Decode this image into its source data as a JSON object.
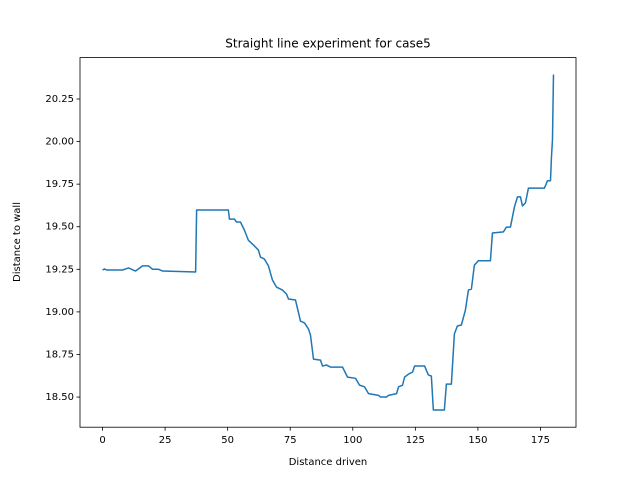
{
  "chart_data": {
    "type": "line",
    "title": "Straight line experiment for case5",
    "x_label": "Distance driven",
    "y_label": "Distance to wall",
    "color": "#1f77b4",
    "x": [
      0,
      0.8,
      1.6,
      8,
      10.4,
      13.2,
      16,
      18.4,
      20,
      22.4,
      24,
      37.2,
      37.6,
      50.3,
      50.7,
      52.7,
      53.5,
      55.1,
      56.7,
      58.3,
      60.7,
      62.3,
      63.1,
      64.7,
      66.3,
      67.9,
      69.5,
      71.9,
      73.5,
      74.3,
      77.1,
      79.1,
      80.7,
      82.3,
      83.1,
      84.3,
      87.1,
      87.9,
      89.5,
      91.1,
      95.9,
      97.9,
      101.1,
      102.7,
      104.7,
      106.3,
      110.3,
      111.1,
      113.5,
      114.3,
      117.5,
      118.3,
      119.9,
      120.7,
      122.3,
      123.9,
      124.7,
      128.7,
      130.2,
      131.4,
      132.2,
      136.6,
      137.4,
      139.4,
      140.6,
      141.8,
      143.4,
      145.0,
      146.2,
      147.4,
      148.6,
      150.2,
      155.0,
      155.8,
      160.2,
      161.4,
      163,
      164.6,
      165.8,
      167,
      167.8,
      169.0,
      170.2,
      176.6,
      177.8,
      179.0,
      179.4,
      179.8,
      180.2,
      180.2
    ],
    "values": [
      19.246,
      19.252,
      19.246,
      19.246,
      19.258,
      19.24,
      19.27,
      19.27,
      19.25,
      19.25,
      19.24,
      19.234,
      19.598,
      19.598,
      19.545,
      19.545,
      19.528,
      19.528,
      19.48,
      19.42,
      19.387,
      19.363,
      19.322,
      19.31,
      19.27,
      19.187,
      19.146,
      19.128,
      19.105,
      19.076,
      19.07,
      18.946,
      18.935,
      18.9,
      18.864,
      18.723,
      18.717,
      18.682,
      18.688,
      18.676,
      18.676,
      18.617,
      18.61,
      18.57,
      18.56,
      18.52,
      18.51,
      18.5,
      18.5,
      18.51,
      18.52,
      18.56,
      18.57,
      18.617,
      18.635,
      18.647,
      18.682,
      18.682,
      18.63,
      18.623,
      18.424,
      18.424,
      18.576,
      18.576,
      18.87,
      18.917,
      18.923,
      19.01,
      19.128,
      19.134,
      19.275,
      19.3,
      19.3,
      19.463,
      19.47,
      19.498,
      19.498,
      19.616,
      19.675,
      19.675,
      19.622,
      19.64,
      19.727,
      19.727,
      19.77,
      19.77,
      19.91,
      20.01,
      20.39,
      20.37
    ],
    "xlim": [
      -9,
      189.2
    ],
    "xticks": [
      0,
      25,
      50,
      75,
      100,
      125,
      150,
      175
    ],
    "ylim": [
      18.323,
      20.493
    ],
    "yticks": [
      {
        "value": 18.5,
        "label": "18.50"
      },
      18.75,
      {
        "value": 19,
        "label": "19.00"
      },
      19.25,
      {
        "value": 19.5,
        "label": "19.50"
      },
      19.75,
      {
        "value": 20,
        "label": "20.00"
      },
      20.25
    ]
  }
}
